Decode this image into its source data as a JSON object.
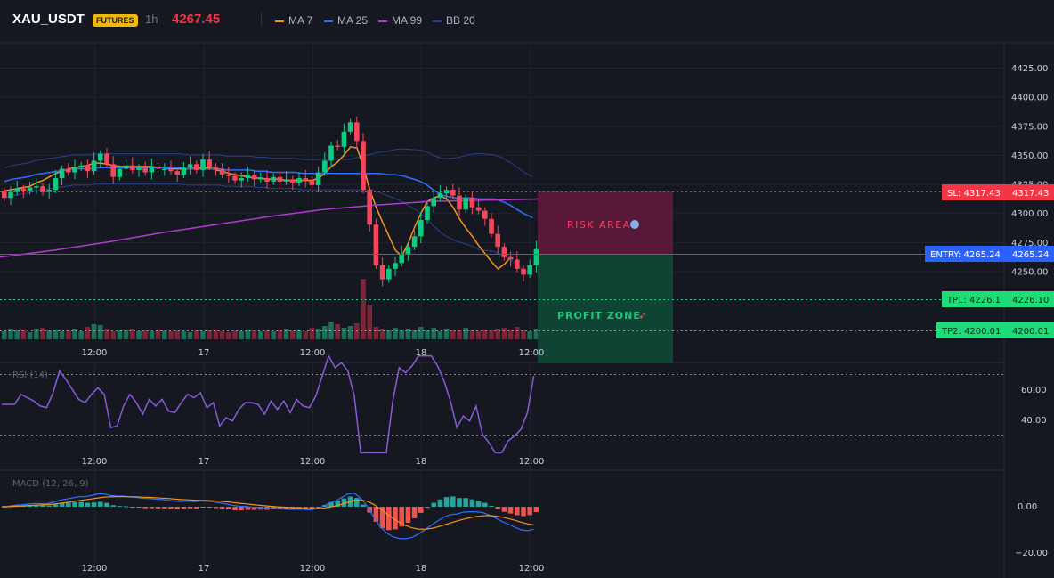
{
  "header": {
    "symbol": "XAU_USDT",
    "badge": "FUTURES",
    "timeframe": "1h",
    "price": "4267.45",
    "legend": [
      {
        "label": "MA 7",
        "color": "#f7931a"
      },
      {
        "label": "MA 25",
        "color": "#2f6fff"
      },
      {
        "label": "MA 99",
        "color": "#b23bd1"
      },
      {
        "label": "BB 20",
        "color": "#27408b"
      }
    ]
  },
  "chart_data": [
    {
      "type": "candlestick",
      "price_axis": {
        "ticks": [
          4425,
          4400,
          4375,
          4350,
          4325,
          4300,
          4275,
          4250
        ],
        "labels": [
          "4425.00",
          "4400.00",
          "4375.00",
          "4350.00",
          "4325.00",
          "4300.00",
          "4275.00",
          "4250.00"
        ]
      },
      "time_axis": [
        "12:00",
        "17",
        "12:00",
        "18",
        "12:00"
      ],
      "closes": [
        4313,
        4318,
        4321,
        4319,
        4322,
        4323,
        4318,
        4320,
        4330,
        4338,
        4335,
        4339,
        4341,
        4336,
        4345,
        4351,
        4342,
        4331,
        4338,
        4341,
        4337,
        4339,
        4335,
        4340,
        4338,
        4338,
        4336,
        4333,
        4339,
        4342,
        4337,
        4346,
        4340,
        4338,
        4333,
        4332,
        4328,
        4330,
        4333,
        4329,
        4330,
        4327,
        4331,
        4327,
        4329,
        4326,
        4330,
        4328,
        4324,
        4335,
        4345,
        4358,
        4357,
        4370,
        4378,
        4362,
        4320,
        4290,
        4255,
        4243,
        4252,
        4257,
        4265,
        4271,
        4280,
        4294,
        4306,
        4313,
        4317,
        4320,
        4315,
        4303,
        4313,
        4305,
        4302,
        4295,
        4282,
        4271,
        4262,
        4260,
        4252,
        4247,
        4255,
        4269
      ],
      "volume_heights": [
        9,
        12,
        10,
        11,
        8,
        12,
        13,
        10,
        11,
        9,
        10,
        12,
        9,
        14,
        17,
        16,
        12,
        9,
        11,
        10,
        12,
        9,
        10,
        9,
        11,
        10,
        9,
        10,
        9,
        8,
        10,
        9,
        10,
        11,
        9,
        8,
        10,
        9,
        11,
        10,
        9,
        10,
        9,
        11,
        12,
        10,
        11,
        9,
        13,
        12,
        15,
        20,
        17,
        13,
        15,
        18,
        68,
        38,
        14,
        12,
        10,
        13,
        11,
        12,
        10,
        14,
        11,
        13,
        9,
        12,
        10,
        11,
        13,
        10,
        9,
        11,
        10,
        12,
        13,
        11,
        14,
        10,
        9,
        12
      ],
      "ma7": [
        4319,
        4320,
        4321,
        4322,
        4323,
        4326,
        4328,
        4331,
        4334,
        4336,
        4338,
        4339,
        4340,
        4341,
        4343,
        4343,
        4342,
        4341,
        4340,
        4340,
        4340,
        4340,
        4340,
        4340,
        4339,
        4339,
        4338,
        4338,
        4338,
        4338,
        4339,
        4339,
        4339,
        4337,
        4336,
        4334,
        4333,
        4332,
        4331,
        4330,
        4330,
        4329,
        4329,
        4329,
        4328,
        4328,
        4328,
        4328,
        4328,
        4330,
        4334,
        4340,
        4344,
        4350,
        4357,
        4356,
        4340,
        4320,
        4305,
        4292,
        4280,
        4268,
        4263,
        4274,
        4288,
        4300,
        4310,
        4313,
        4315,
        4312,
        4305,
        4295,
        4287,
        4280,
        4272,
        4265,
        4258,
        4252,
        4256,
        4262
      ],
      "ma25": [
        4327,
        4329,
        4330,
        4331,
        4333,
        4334,
        4335,
        4336,
        4337,
        4338,
        4338,
        4338,
        4339,
        4339,
        4339,
        4339,
        4339,
        4339,
        4339,
        4339,
        4339,
        4339,
        4339,
        4339,
        4338,
        4338,
        4338,
        4338,
        4338,
        4337,
        4337,
        4337,
        4337,
        4336,
        4336,
        4335,
        4335,
        4335,
        4335,
        4334,
        4334,
        4334,
        4334,
        4334,
        4334,
        4334,
        4334,
        4334,
        4334,
        4334,
        4333,
        4333,
        4332,
        4330,
        4328,
        4325,
        4320,
        4316,
        4314,
        4313,
        4313,
        4313,
        4312,
        4312,
        4312,
        4310,
        4307,
        4303,
        4299,
        4296
      ],
      "ma99": [
        4262,
        4268,
        4275,
        4283,
        4290,
        4297,
        4303,
        4307,
        4310,
        4311,
        4312
      ],
      "rsi": {
        "label": "RSI (14)",
        "ticks": [
          "60.00",
          "40.00"
        ],
        "levels": [
          70,
          30
        ]
      },
      "macd": {
        "label": "MACD (12, 26, 9)",
        "ticks": [
          "0.00",
          "−20.00"
        ]
      }
    }
  ],
  "overlays": {
    "risk_label": "RISK AREA",
    "profit_label": "PROFIT ZONE",
    "sl": {
      "tag": "SL: 4317.43",
      "value": "4317.43"
    },
    "entry": {
      "tag": "ENTRY: 4265.24",
      "value": "4265.24"
    },
    "tp1": {
      "tag": "TP1: 4226.1",
      "value": "4226.10"
    },
    "tp2": {
      "tag": "TP2: 4200.01",
      "value": "4200.01"
    }
  }
}
